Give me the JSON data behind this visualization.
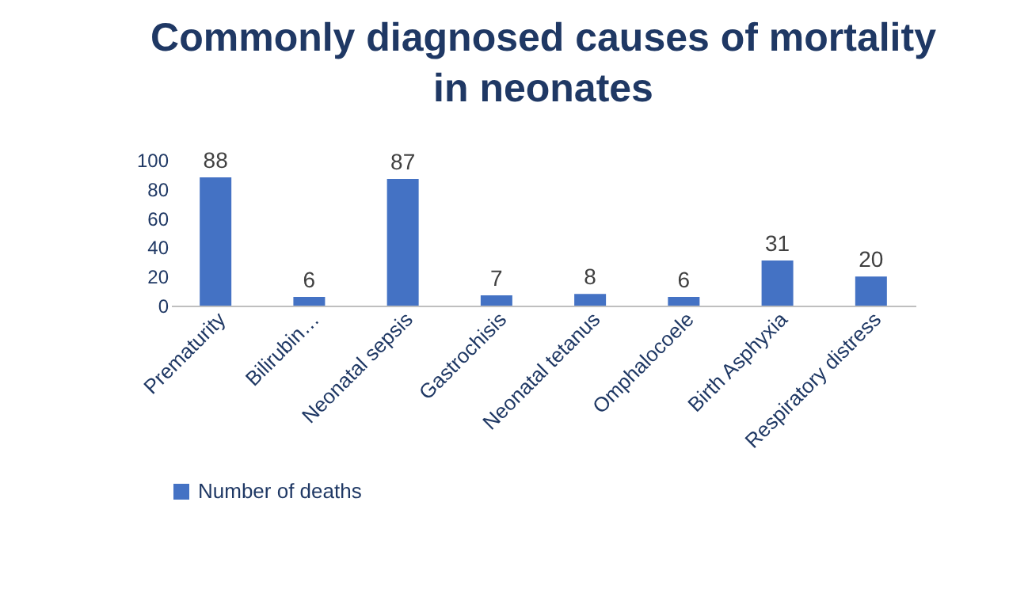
{
  "chart_data": {
    "type": "bar",
    "title": "Commonly  diagnosed causes of mortality in neonates",
    "categories": [
      "Prematurity",
      "Bilirubin…",
      "Neonatal sepsis",
      "Gastrochisis",
      "Neonatal tetanus",
      "Omphalocoele",
      "Birth Asphyxia",
      "Respiratory distress"
    ],
    "series": [
      {
        "name": "Number of deaths",
        "color": "#4472c4",
        "values": [
          88,
          6,
          87,
          7,
          8,
          6,
          31,
          20
        ]
      }
    ],
    "ylim": [
      0,
      100
    ],
    "yticks": [
      0,
      20,
      40,
      60,
      80,
      100
    ],
    "grid": false,
    "legend": "bottom",
    "data_labels": true
  }
}
